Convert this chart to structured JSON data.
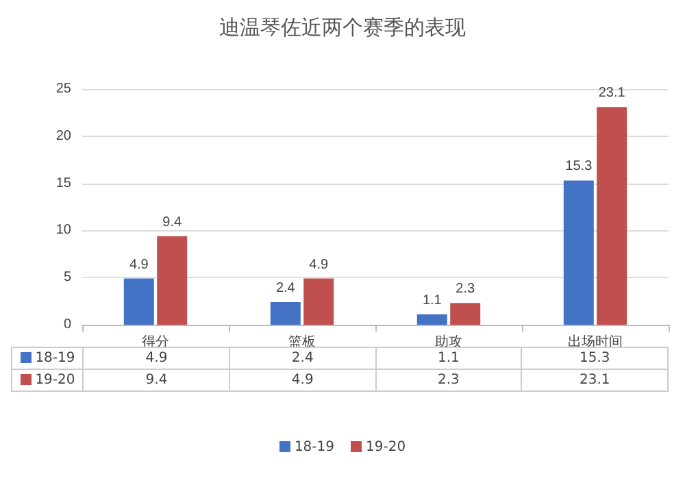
{
  "chart_data": {
    "type": "bar",
    "title": "迪温琴佐近两个赛季的表现",
    "categories": [
      "得分",
      "篮板",
      "助攻",
      "出场时间"
    ],
    "series": [
      {
        "name": "18-19",
        "color": "#4472c4",
        "values": [
          4.9,
          2.4,
          1.1,
          15.3
        ],
        "value_labels": [
          "4.9",
          "2.4",
          "1.1",
          "15.3"
        ]
      },
      {
        "name": "19-20",
        "color": "#c0504d",
        "values": [
          9.4,
          4.9,
          2.3,
          23.1
        ],
        "value_labels": [
          "9.4",
          "4.9",
          "2.3",
          "23.1"
        ]
      }
    ],
    "annotations": [
      "4.9",
      "2.4",
      "1.1",
      "15.3",
      "9.4",
      "4.9",
      "2.3",
      "23.1"
    ],
    "ylim": [
      0,
      25
    ],
    "yticks": [
      0,
      5,
      10,
      15,
      20,
      25
    ],
    "grid": "y",
    "legend": "bottom"
  }
}
